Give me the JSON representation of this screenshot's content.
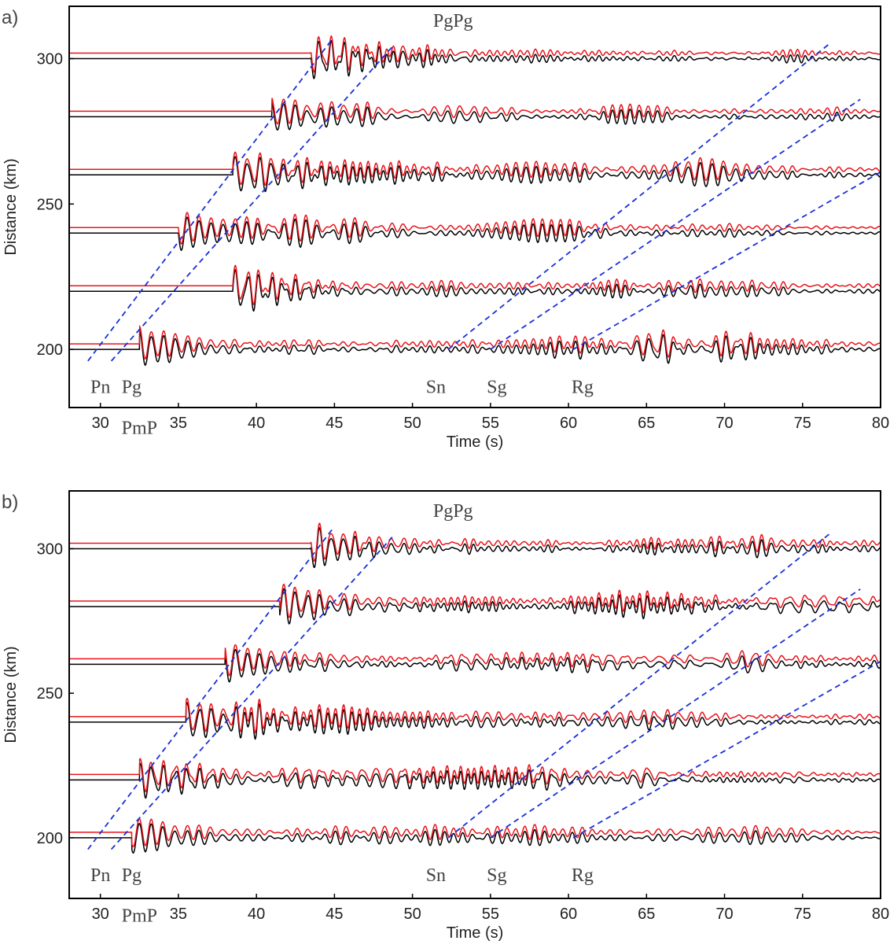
{
  "chart_data": [
    {
      "type": "seismogram",
      "panel_label": "a)",
      "x_label": "Time (s)",
      "y_label": "Distance (km)",
      "xlim": [
        28,
        80
      ],
      "ylim": [
        180,
        318
      ],
      "xticks": [
        30,
        35,
        40,
        45,
        50,
        55,
        60,
        65,
        70,
        75,
        80
      ],
      "yticks": [
        200,
        250,
        300
      ],
      "trace_colors": [
        "#000000",
        "#e8141b"
      ],
      "line_color": "#1a2fd8",
      "traces": [
        {
          "distance": 200,
          "onset": 32.5
        },
        {
          "distance": 220,
          "onset": 38.5
        },
        {
          "distance": 240,
          "onset": 35
        },
        {
          "distance": 260,
          "onset": 38.5
        },
        {
          "distance": 280,
          "onset": 41
        },
        {
          "distance": 300,
          "onset": 43.5
        }
      ],
      "lines": [
        {
          "x": [
            29.2,
            44.9
          ],
          "y": [
            196,
            307
          ]
        },
        {
          "x": [
            30.7,
            48.7
          ],
          "y": [
            196,
            304
          ]
        },
        {
          "x": [
            52.3,
            76.7
          ],
          "y": [
            200,
            305
          ]
        },
        {
          "x": [
            55,
            78.7
          ],
          "y": [
            200,
            286
          ]
        },
        {
          "x": [
            60.3,
            80
          ],
          "y": [
            200,
            261
          ]
        }
      ],
      "annotations": [
        {
          "text": "Pn",
          "x": 30,
          "y": 185
        },
        {
          "text": "Pg",
          "x": 32,
          "y": 185
        },
        {
          "text": "PmP",
          "x": 32.5,
          "y": 171
        },
        {
          "text": "Sn",
          "x": 51.5,
          "y": 185
        },
        {
          "text": "Sg",
          "x": 55.4,
          "y": 185
        },
        {
          "text": "Rg",
          "x": 60.9,
          "y": 185
        },
        {
          "text": "PgPg",
          "x": 52.6,
          "y": 311
        }
      ]
    },
    {
      "type": "seismogram",
      "panel_label": "b)",
      "x_label": "Time (s)",
      "y_label": "Distance (km)",
      "xlim": [
        28,
        80
      ],
      "ylim": [
        179,
        320
      ],
      "xticks": [
        30,
        35,
        40,
        45,
        50,
        55,
        60,
        65,
        70,
        75,
        80
      ],
      "yticks": [
        200,
        250,
        300
      ],
      "trace_colors": [
        "#000000",
        "#e8141b"
      ],
      "line_color": "#1a2fd8",
      "traces": [
        {
          "distance": 200,
          "onset": 32
        },
        {
          "distance": 220,
          "onset": 32.5
        },
        {
          "distance": 240,
          "onset": 35.5
        },
        {
          "distance": 260,
          "onset": 38
        },
        {
          "distance": 280,
          "onset": 41.5
        },
        {
          "distance": 300,
          "onset": 43.5
        }
      ],
      "lines": [
        {
          "x": [
            29.2,
            44.9
          ],
          "y": [
            196,
            307
          ]
        },
        {
          "x": [
            30.7,
            48.7
          ],
          "y": [
            196,
            304
          ]
        },
        {
          "x": [
            52.3,
            76.7
          ],
          "y": [
            200,
            305
          ]
        },
        {
          "x": [
            55,
            78.7
          ],
          "y": [
            200,
            286
          ]
        },
        {
          "x": [
            60.3,
            80
          ],
          "y": [
            200,
            261
          ]
        }
      ],
      "annotations": [
        {
          "text": "Pn",
          "x": 30,
          "y": 185
        },
        {
          "text": "Pg",
          "x": 32,
          "y": 185
        },
        {
          "text": "PmP",
          "x": 32.5,
          "y": 171
        },
        {
          "text": "Sn",
          "x": 51.5,
          "y": 185
        },
        {
          "text": "Sg",
          "x": 55.4,
          "y": 185
        },
        {
          "text": "Rg",
          "x": 60.9,
          "y": 185
        },
        {
          "text": "PgPg",
          "x": 52.6,
          "y": 311
        }
      ]
    }
  ]
}
